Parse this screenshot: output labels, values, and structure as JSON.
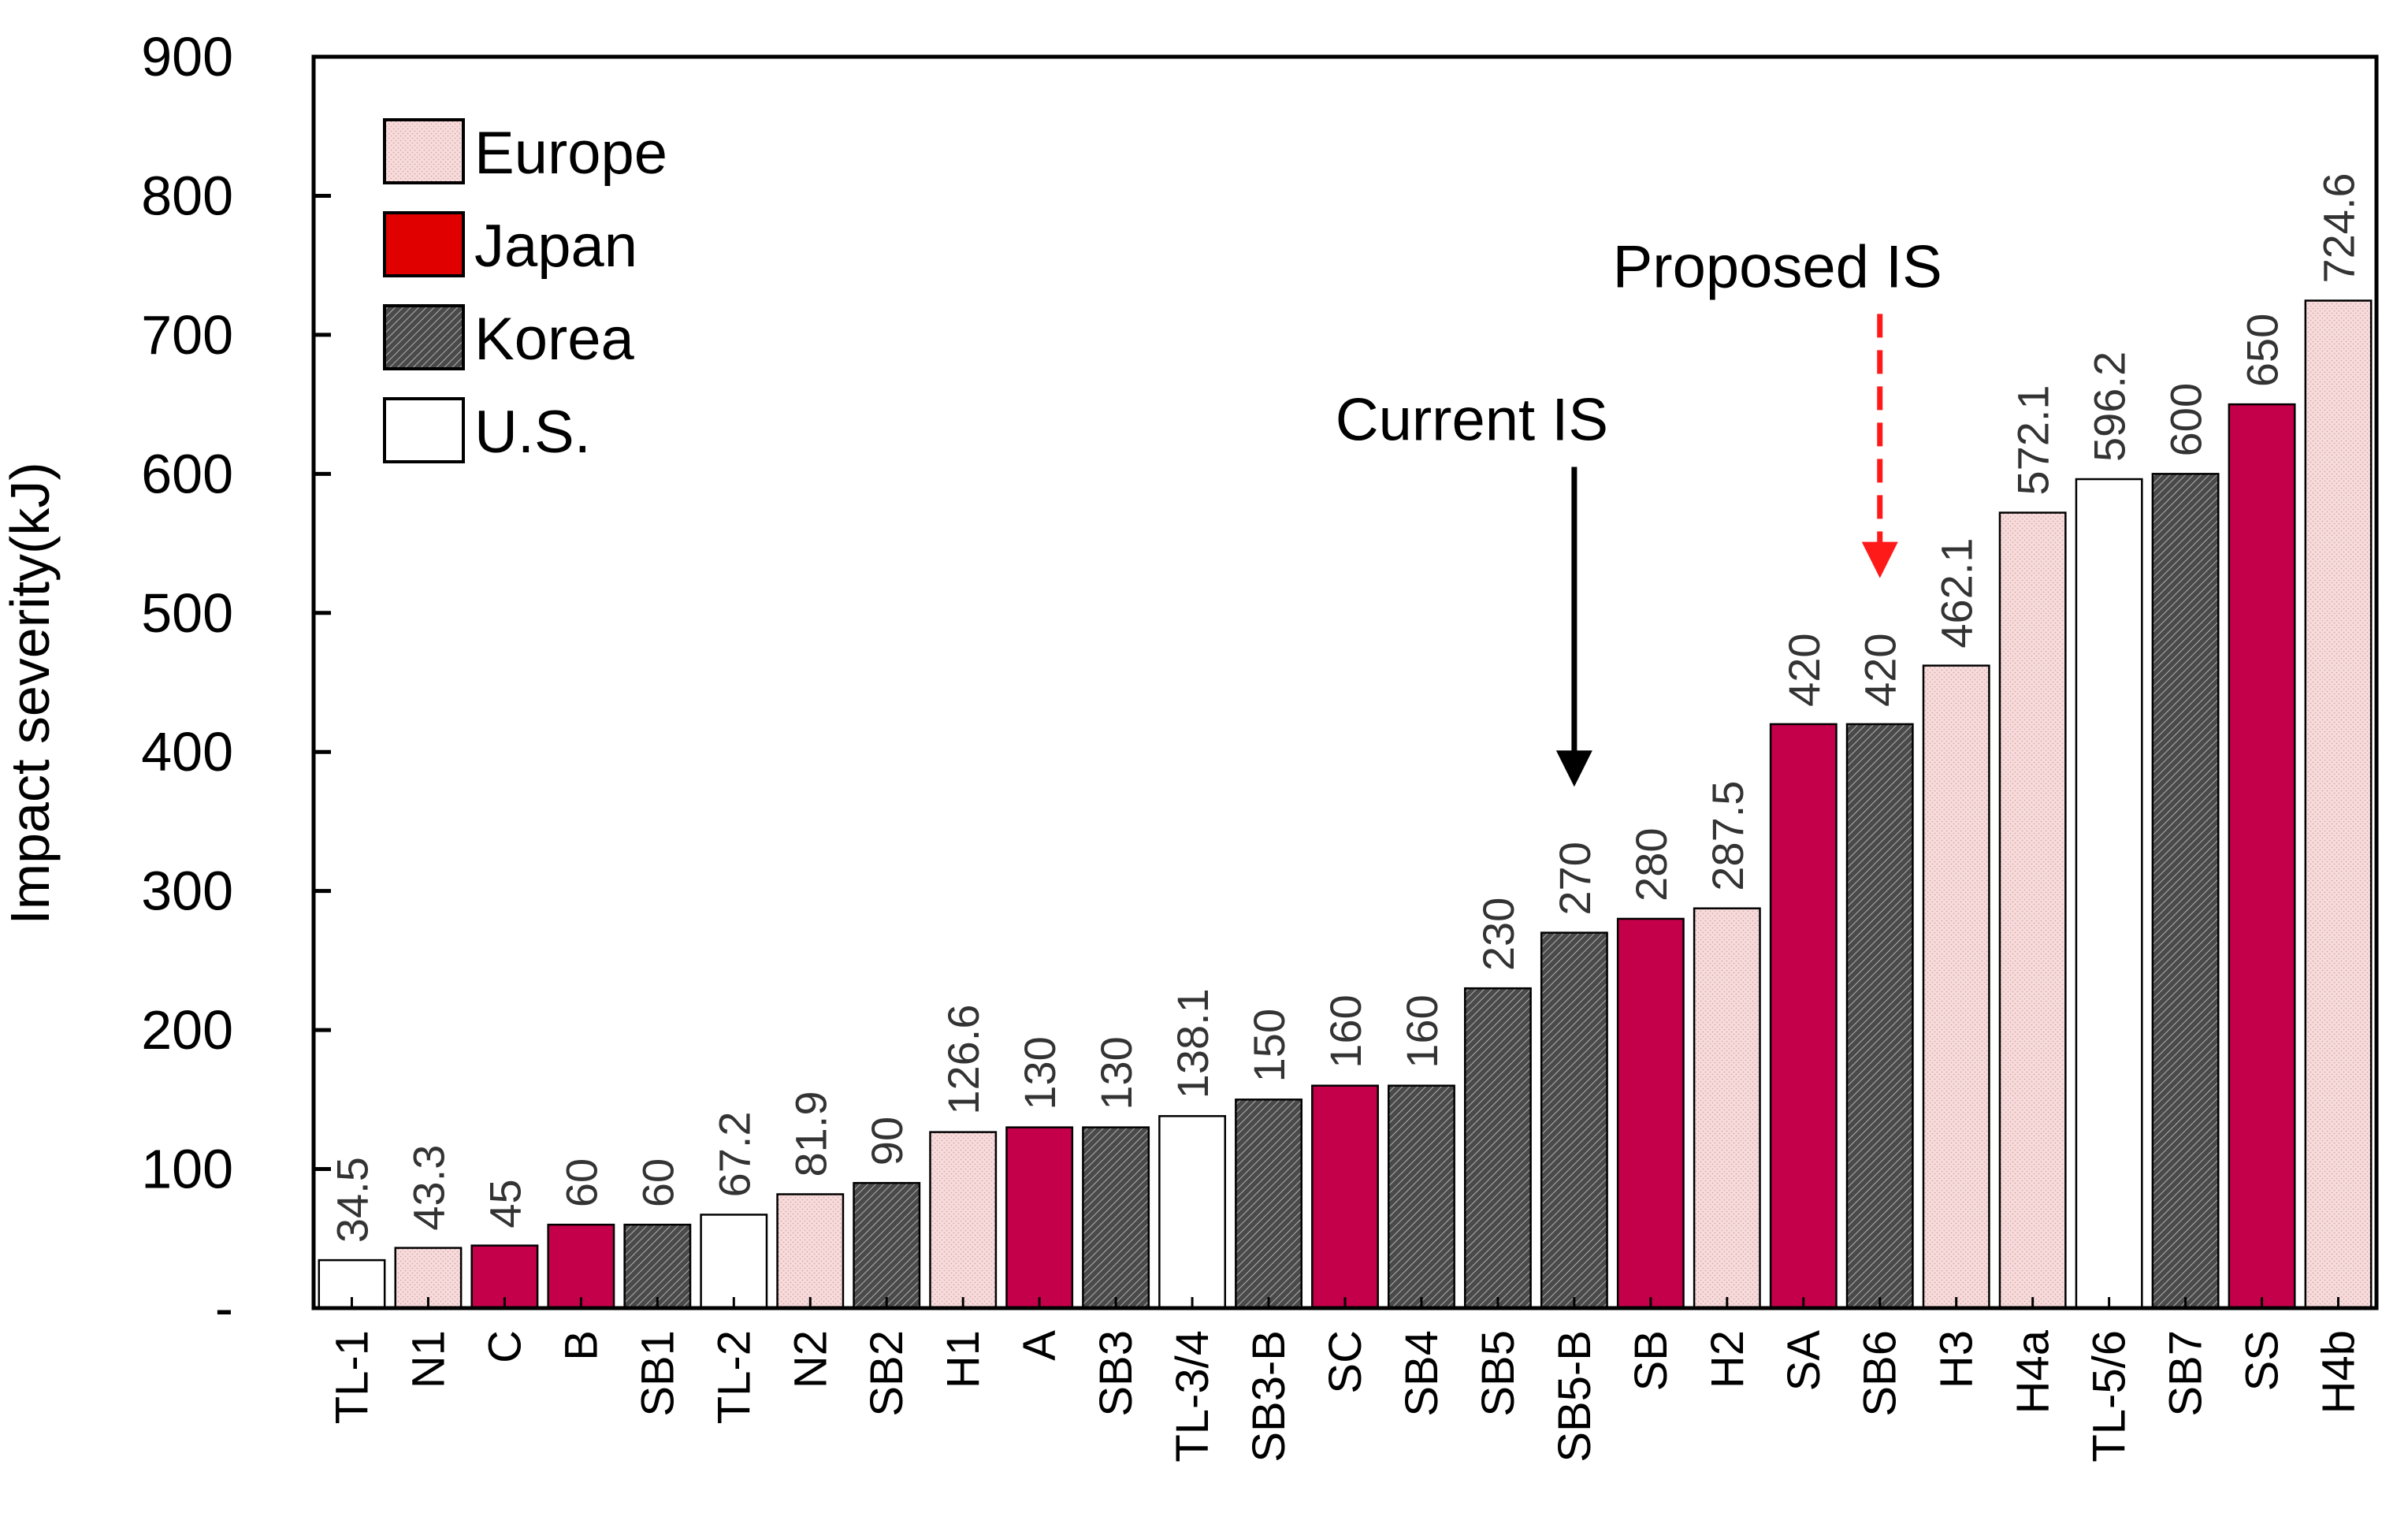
{
  "chart_data": {
    "type": "bar",
    "ylabel": "Impact severity(kJ)",
    "xlabel": "",
    "ylim": [
      0,
      900
    ],
    "y_ticks": [
      {
        "value": 0,
        "label": "-"
      },
      {
        "value": 100,
        "label": "100"
      },
      {
        "value": 200,
        "label": "200"
      },
      {
        "value": 300,
        "label": "300"
      },
      {
        "value": 400,
        "label": "400"
      },
      {
        "value": 500,
        "label": "500"
      },
      {
        "value": 600,
        "label": "600"
      },
      {
        "value": 700,
        "label": "700"
      },
      {
        "value": 800,
        "label": "800"
      },
      {
        "value": 900,
        "label": "900"
      }
    ],
    "legend": {
      "placement": "top-left",
      "entries": [
        {
          "name": "Europe",
          "region": "europe"
        },
        {
          "name": "Japan",
          "region": "japan"
        },
        {
          "name": "Korea",
          "region": "korea"
        },
        {
          "name": "U.S.",
          "region": "us"
        }
      ]
    },
    "colors": {
      "europe_fill": "#f7dcdc",
      "europe_dots": "#d9a6ab",
      "japan_fill": "#c4004a",
      "korea_fill": "#4a4a4a",
      "korea_hatch": "#b0b0b0",
      "us_fill": "#ffffff",
      "legend_japan": "#e00000",
      "proposed_color": "#ff1a1a",
      "current_color": "#000000"
    },
    "bars": [
      {
        "category": "TL-1",
        "value": 34.5,
        "label": "34.5",
        "region": "us"
      },
      {
        "category": "N1",
        "value": 43.3,
        "label": "43.3",
        "region": "europe"
      },
      {
        "category": "C",
        "value": 45,
        "label": "45",
        "region": "japan"
      },
      {
        "category": "B",
        "value": 60,
        "label": "60",
        "region": "japan"
      },
      {
        "category": "SB1",
        "value": 60,
        "label": "60",
        "region": "korea"
      },
      {
        "category": "TL-2",
        "value": 67.2,
        "label": "67.2",
        "region": "us"
      },
      {
        "category": "N2",
        "value": 81.9,
        "label": "81.9",
        "region": "europe"
      },
      {
        "category": "SB2",
        "value": 90,
        "label": "90",
        "region": "korea"
      },
      {
        "category": "H1",
        "value": 126.6,
        "label": "126.6",
        "region": "europe"
      },
      {
        "category": "A",
        "value": 130,
        "label": "130",
        "region": "japan"
      },
      {
        "category": "SB3",
        "value": 130,
        "label": "130",
        "region": "korea"
      },
      {
        "category": "TL-3/4",
        "value": 138.1,
        "label": "138.1",
        "region": "us"
      },
      {
        "category": "SB3-B",
        "value": 150,
        "label": "150",
        "region": "korea"
      },
      {
        "category": "SC",
        "value": 160,
        "label": "160",
        "region": "japan"
      },
      {
        "category": "SB4",
        "value": 160,
        "label": "160",
        "region": "korea"
      },
      {
        "category": "SB5",
        "value": 230,
        "label": "230",
        "region": "korea"
      },
      {
        "category": "SB5-B",
        "value": 270,
        "label": "270",
        "region": "korea"
      },
      {
        "category": "SB",
        "value": 280,
        "label": "280",
        "region": "japan"
      },
      {
        "category": "H2",
        "value": 287.5,
        "label": "287.5",
        "region": "europe"
      },
      {
        "category": "SA",
        "value": 420,
        "label": "420",
        "region": "japan"
      },
      {
        "category": "SB6",
        "value": 420,
        "label": "420",
        "region": "korea"
      },
      {
        "category": "H3",
        "value": 462.1,
        "label": "462.1",
        "region": "europe"
      },
      {
        "category": "H4a",
        "value": 572.1,
        "label": "572.1",
        "region": "europe"
      },
      {
        "category": "TL-5/6",
        "value": 596.2,
        "label": "596.2",
        "region": "us"
      },
      {
        "category": "SB7",
        "value": 600,
        "label": "600",
        "region": "korea"
      },
      {
        "category": "SS",
        "value": 650,
        "label": "650",
        "region": "japan"
      },
      {
        "category": "H4b",
        "value": 724.6,
        "label": "724.6",
        "region": "europe"
      }
    ],
    "annotations": [
      {
        "text": "Current IS",
        "target": "SB5-B",
        "from_value": 605,
        "to_value": 375,
        "style": "solid",
        "color": "#000000"
      },
      {
        "text": "Proposed IS",
        "target": "SB6",
        "from_value": 715,
        "to_value": 525,
        "style": "dashed",
        "color": "#ff1a1a"
      }
    ]
  }
}
